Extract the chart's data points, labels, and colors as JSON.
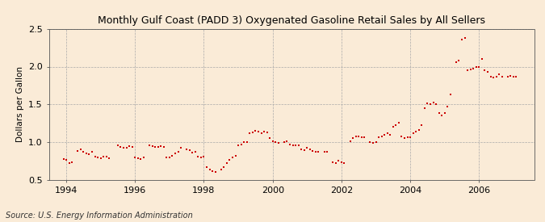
{
  "title": "Monthly Gulf Coast (PADD 3) Oxygenated Gasoline Retail Sales by All Sellers",
  "ylabel": "Dollars per Gallon",
  "source": "Source: U.S. Energy Information Administration",
  "background_color": "#faebd7",
  "plot_background": "#faebd7",
  "marker_color": "#cc0000",
  "marker_size": 3.5,
  "xlim_left": 1993.5,
  "xlim_right": 2007.6,
  "ylim_bottom": 0.5,
  "ylim_top": 2.5,
  "yticks": [
    0.5,
    1.0,
    1.5,
    2.0,
    2.5
  ],
  "xticks": [
    1994,
    1996,
    1998,
    2000,
    2002,
    2004,
    2006
  ],
  "data": [
    [
      1993.917,
      0.78
    ],
    [
      1994.0,
      0.77
    ],
    [
      1994.083,
      0.72
    ],
    [
      1994.167,
      0.73
    ],
    [
      1994.333,
      0.88
    ],
    [
      1994.417,
      0.9
    ],
    [
      1994.5,
      0.87
    ],
    [
      1994.583,
      0.85
    ],
    [
      1994.667,
      0.84
    ],
    [
      1994.75,
      0.87
    ],
    [
      1994.833,
      0.81
    ],
    [
      1994.917,
      0.8
    ],
    [
      1995.0,
      0.79
    ],
    [
      1995.083,
      0.81
    ],
    [
      1995.167,
      0.81
    ],
    [
      1995.25,
      0.79
    ],
    [
      1995.5,
      0.96
    ],
    [
      1995.583,
      0.94
    ],
    [
      1995.667,
      0.93
    ],
    [
      1995.75,
      0.93
    ],
    [
      1995.833,
      0.95
    ],
    [
      1995.917,
      0.94
    ],
    [
      1996.0,
      0.8
    ],
    [
      1996.083,
      0.79
    ],
    [
      1996.167,
      0.78
    ],
    [
      1996.25,
      0.8
    ],
    [
      1996.417,
      0.96
    ],
    [
      1996.5,
      0.95
    ],
    [
      1996.583,
      0.94
    ],
    [
      1996.667,
      0.94
    ],
    [
      1996.75,
      0.95
    ],
    [
      1996.833,
      0.94
    ],
    [
      1996.917,
      0.8
    ],
    [
      1997.0,
      0.8
    ],
    [
      1997.083,
      0.82
    ],
    [
      1997.167,
      0.85
    ],
    [
      1997.25,
      0.87
    ],
    [
      1997.333,
      0.93
    ],
    [
      1997.5,
      0.9
    ],
    [
      1997.583,
      0.89
    ],
    [
      1997.667,
      0.86
    ],
    [
      1997.75,
      0.87
    ],
    [
      1997.833,
      0.81
    ],
    [
      1997.917,
      0.8
    ],
    [
      1998.0,
      0.81
    ],
    [
      1998.083,
      0.67
    ],
    [
      1998.167,
      0.64
    ],
    [
      1998.25,
      0.61
    ],
    [
      1998.333,
      0.6
    ],
    [
      1998.5,
      0.64
    ],
    [
      1998.583,
      0.67
    ],
    [
      1998.667,
      0.72
    ],
    [
      1998.75,
      0.76
    ],
    [
      1998.833,
      0.8
    ],
    [
      1998.917,
      0.82
    ],
    [
      1999.0,
      0.96
    ],
    [
      1999.083,
      0.97
    ],
    [
      1999.167,
      1.0
    ],
    [
      1999.25,
      1.0
    ],
    [
      1999.333,
      1.12
    ],
    [
      1999.417,
      1.13
    ],
    [
      1999.5,
      1.15
    ],
    [
      1999.583,
      1.14
    ],
    [
      1999.667,
      1.12
    ],
    [
      1999.75,
      1.14
    ],
    [
      1999.833,
      1.13
    ],
    [
      1999.917,
      1.05
    ],
    [
      2000.0,
      1.01
    ],
    [
      2000.083,
      1.0
    ],
    [
      2000.167,
      0.99
    ],
    [
      2000.333,
      1.0
    ],
    [
      2000.417,
      1.01
    ],
    [
      2000.5,
      0.97
    ],
    [
      2000.583,
      0.96
    ],
    [
      2000.667,
      0.96
    ],
    [
      2000.75,
      0.96
    ],
    [
      2000.833,
      0.9
    ],
    [
      2000.917,
      0.89
    ],
    [
      2001.0,
      0.92
    ],
    [
      2001.083,
      0.9
    ],
    [
      2001.167,
      0.88
    ],
    [
      2001.25,
      0.87
    ],
    [
      2001.333,
      0.87
    ],
    [
      2001.5,
      0.87
    ],
    [
      2001.583,
      0.87
    ],
    [
      2001.75,
      0.73
    ],
    [
      2001.833,
      0.72
    ],
    [
      2001.917,
      0.75
    ],
    [
      2002.0,
      0.73
    ],
    [
      2002.083,
      0.72
    ],
    [
      2002.25,
      1.01
    ],
    [
      2002.333,
      1.05
    ],
    [
      2002.417,
      1.07
    ],
    [
      2002.5,
      1.08
    ],
    [
      2002.583,
      1.06
    ],
    [
      2002.667,
      1.06
    ],
    [
      2002.833,
      1.0
    ],
    [
      2002.917,
      0.99
    ],
    [
      2003.0,
      1.0
    ],
    [
      2003.083,
      1.06
    ],
    [
      2003.167,
      1.08
    ],
    [
      2003.25,
      1.1
    ],
    [
      2003.333,
      1.12
    ],
    [
      2003.417,
      1.1
    ],
    [
      2003.5,
      1.2
    ],
    [
      2003.583,
      1.22
    ],
    [
      2003.667,
      1.26
    ],
    [
      2003.75,
      1.08
    ],
    [
      2003.833,
      1.05
    ],
    [
      2003.917,
      1.06
    ],
    [
      2004.0,
      1.06
    ],
    [
      2004.083,
      1.12
    ],
    [
      2004.167,
      1.14
    ],
    [
      2004.25,
      1.16
    ],
    [
      2004.333,
      1.22
    ],
    [
      2004.417,
      1.45
    ],
    [
      2004.5,
      1.51
    ],
    [
      2004.583,
      1.5
    ],
    [
      2004.667,
      1.52
    ],
    [
      2004.75,
      1.5
    ],
    [
      2004.833,
      1.38
    ],
    [
      2004.917,
      1.35
    ],
    [
      2005.0,
      1.38
    ],
    [
      2005.083,
      1.47
    ],
    [
      2005.167,
      1.63
    ],
    [
      2005.333,
      2.06
    ],
    [
      2005.417,
      2.08
    ],
    [
      2005.5,
      2.36
    ],
    [
      2005.583,
      2.38
    ],
    [
      2005.667,
      1.95
    ],
    [
      2005.75,
      1.96
    ],
    [
      2005.833,
      1.97
    ],
    [
      2005.917,
      1.99
    ],
    [
      2006.0,
      2.0
    ],
    [
      2006.083,
      2.1
    ],
    [
      2006.167,
      1.95
    ],
    [
      2006.25,
      1.93
    ],
    [
      2006.333,
      1.87
    ],
    [
      2006.417,
      1.86
    ],
    [
      2006.5,
      1.87
    ],
    [
      2006.583,
      1.9
    ],
    [
      2006.667,
      1.87
    ],
    [
      2006.833,
      1.87
    ],
    [
      2006.917,
      1.88
    ],
    [
      2007.0,
      1.87
    ],
    [
      2007.083,
      1.87
    ]
  ]
}
